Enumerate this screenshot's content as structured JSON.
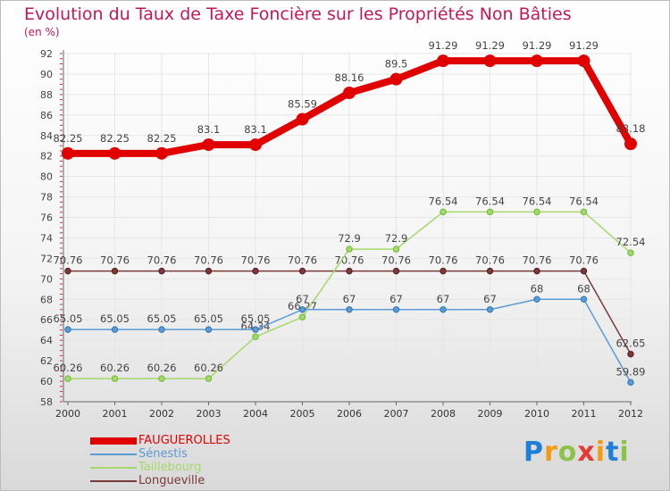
{
  "header": {
    "title": "Evolution du Taux de Taxe Foncière sur les Propriétés Non Bâties",
    "subtitle": "(en %)"
  },
  "colors": {
    "title": "#c2185b",
    "grid": "#e6e6e6",
    "axis_tick": "#d32f2f"
  },
  "chart_data": {
    "type": "line",
    "title": "Evolution du Taux de Taxe Foncière sur les Propriétés Non Bâties",
    "ylabel": "(en %)",
    "x": [
      "2000",
      "2001",
      "2002",
      "2003",
      "2004",
      "2005",
      "2006",
      "2007",
      "2008",
      "2009",
      "2010",
      "2011",
      "2012"
    ],
    "ylim": [
      58,
      92
    ],
    "yticks": [
      58,
      60,
      62,
      64,
      66,
      68,
      70,
      72,
      74,
      76,
      78,
      80,
      82,
      84,
      86,
      88,
      90,
      92
    ],
    "grid": true,
    "legend_position": "bottom-left",
    "series": [
      {
        "name": "FAUGUEROLLES",
        "color": "#e00000",
        "values": [
          82.25,
          82.25,
          82.25,
          83.1,
          83.1,
          85.59,
          88.16,
          89.5,
          91.29,
          91.29,
          91.29,
          91.29,
          83.18
        ],
        "labels": [
          "82.25",
          "82.25",
          "82.25",
          "83.1",
          "83.1",
          "85.59",
          "88.16",
          "89.5",
          "91.29",
          "91.29",
          "91.29",
          "91.29",
          "83.18"
        ]
      },
      {
        "name": "Sénestis",
        "color": "#5b9bd5",
        "marker": "#2e75b6",
        "values": [
          65.05,
          65.05,
          65.05,
          65.05,
          65.05,
          67,
          67,
          67,
          67,
          67,
          68,
          68,
          59.89
        ],
        "labels": [
          "65.05",
          "65.05",
          "65.05",
          "65.05",
          "65.05",
          "67",
          "67",
          "67",
          "67",
          "67",
          "68",
          "68",
          "59.89"
        ]
      },
      {
        "name": "Taillebourg",
        "color": "#a6d96a",
        "marker": "#66bb33",
        "values": [
          60.26,
          60.26,
          60.26,
          60.26,
          64.34,
          66.27,
          72.9,
          72.9,
          76.54,
          76.54,
          76.54,
          76.54,
          72.54
        ],
        "labels": [
          "60.26",
          "60.26",
          "60.26",
          "60.26",
          "64.34",
          "66.27",
          "72.9",
          "72.9",
          "76.54",
          "76.54",
          "76.54",
          "76.54",
          "72.54"
        ]
      },
      {
        "name": "Longueville",
        "color": "#7b3a3a",
        "marker": "#5a1a1a",
        "values": [
          70.76,
          70.76,
          70.76,
          70.76,
          70.76,
          70.76,
          70.76,
          70.76,
          70.76,
          70.76,
          70.76,
          70.76,
          62.65
        ],
        "labels": [
          "70.76",
          "70.76",
          "70.76",
          "70.76",
          "70.76",
          "70.76",
          "70.76",
          "70.76",
          "70.76",
          "70.76",
          "70.76",
          "70.76",
          "62.65"
        ]
      }
    ]
  },
  "legend": {
    "items": [
      "FAUGUEROLLES",
      "Sénestis",
      "Taillebourg",
      "Longueville"
    ],
    "colors": [
      "#e00000",
      "#5b9bd5",
      "#a6d96a",
      "#7b3a3a"
    ]
  },
  "logo": {
    "letters": [
      "P",
      "r",
      "o",
      "x",
      "i",
      "t",
      "i"
    ],
    "colors": [
      "#1f7fd6",
      "#f39c12",
      "#8bc34a",
      "#e53935",
      "#f39c12",
      "#1f7fd6",
      "#8bc34a"
    ]
  }
}
